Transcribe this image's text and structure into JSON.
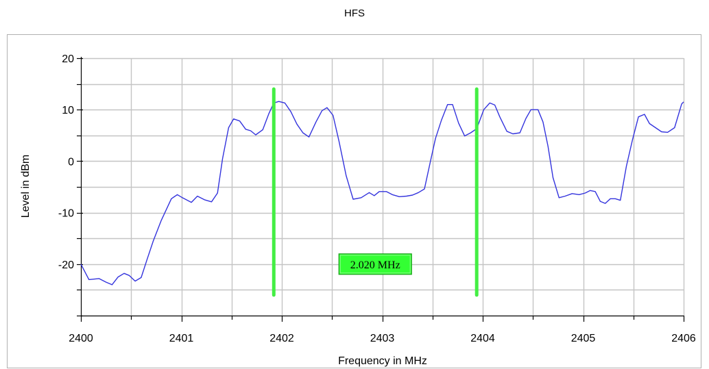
{
  "chart_data": {
    "type": "line",
    "title": "HFS",
    "xlabel": "Frequency in MHz",
    "ylabel": "Level in dBm",
    "xlim": [
      2400,
      2406
    ],
    "ylim": [
      -30,
      20
    ],
    "x_ticks": [
      2400,
      2401,
      2402,
      2403,
      2404,
      2405,
      2406
    ],
    "x_tick_labels": [
      "2400",
      "2401",
      "2402",
      "2403",
      "2404",
      "2405",
      "2406"
    ],
    "y_ticks": [
      -20,
      -10,
      0,
      10,
      20
    ],
    "y_tick_labels": [
      "-20",
      "-10",
      "0",
      "10",
      "20"
    ],
    "grid": true,
    "series_color": "#3333dd",
    "marker_color": "#44ee44",
    "series": [
      {
        "x": [
          2400.0,
          2400.08,
          2400.18,
          2400.25,
          2400.31,
          2400.37,
          2400.43,
          2400.48,
          2400.54,
          2400.6,
          2400.66,
          2400.72,
          2400.8,
          2400.9,
          2400.96,
          2401.01,
          2401.1,
          2401.16,
          2401.23,
          2401.3,
          2401.36,
          2401.41,
          2401.47,
          2401.52,
          2401.58,
          2401.64,
          2401.69,
          2401.74,
          2401.81,
          2401.87,
          2401.92,
          2401.97,
          2402.03,
          2402.09,
          2402.15,
          2402.21,
          2402.27,
          2402.34,
          2402.4,
          2402.45,
          2402.51,
          2402.57,
          2402.64,
          2402.71,
          2402.79,
          2402.87,
          2402.92,
          2402.97,
          2403.04,
          2403.1,
          2403.17,
          2403.24,
          2403.3,
          2403.36,
          2403.42,
          2403.48,
          2403.53,
          2403.59,
          2403.65,
          2403.7,
          2403.76,
          2403.82,
          2403.88,
          2403.94,
          2404.01,
          2404.07,
          2404.12,
          2404.17,
          2404.24,
          2404.3,
          2404.37,
          2404.43,
          2404.48,
          2404.55,
          2404.6,
          2404.65,
          2404.7,
          2404.76,
          2404.82,
          2404.89,
          2404.96,
          2405.02,
          2405.07,
          2405.12,
          2405.17,
          2405.22,
          2405.27,
          2405.32,
          2405.37,
          2405.43,
          2405.49,
          2405.55,
          2405.61,
          2405.66,
          2405.72,
          2405.78,
          2405.84,
          2405.91,
          2405.98,
          2406.0
        ],
        "y": [
          -20,
          -23,
          -22.8,
          -23.5,
          -24,
          -22.5,
          -21.8,
          -22.2,
          -23.3,
          -22.6,
          -19,
          -15.5,
          -11.5,
          -7.3,
          -6.5,
          -7.1,
          -8,
          -6.8,
          -7.5,
          -7.9,
          -6.2,
          0.5,
          6.5,
          8.2,
          7.8,
          6.2,
          5.9,
          5.1,
          6.1,
          9.2,
          11.3,
          11.6,
          11.3,
          9.6,
          7.2,
          5.5,
          4.7,
          7.6,
          9.8,
          10.4,
          8.9,
          3.8,
          -2.8,
          -7.4,
          -7.1,
          -6.1,
          -6.7,
          -5.9,
          -5.9,
          -6.5,
          -6.9,
          -6.8,
          -6.6,
          -6.1,
          -5.4,
          0,
          4.4,
          8,
          11,
          11,
          7.4,
          4.9,
          5.5,
          6.3,
          10,
          11.3,
          10.9,
          8.6,
          5.8,
          5.3,
          5.5,
          8.3,
          10,
          10,
          7.6,
          2.9,
          -3.2,
          -7.1,
          -6.8,
          -6.3,
          -6.5,
          -6.2,
          -5.7,
          -5.9,
          -7.8,
          -8.2,
          -7.3,
          -7.3,
          -7.6,
          -1,
          4.1,
          8.6,
          9.1,
          7.3,
          6.5,
          5.7,
          5.6,
          6.5,
          11.1,
          11.5
        ]
      }
    ],
    "markers": [
      {
        "x": 2401.92,
        "y_top": 14,
        "y_bottom": -26
      },
      {
        "x": 2403.94,
        "y_top": 14,
        "y_bottom": -26
      }
    ],
    "annotations": [
      {
        "text": "2.020 MHz",
        "x": 2402.93,
        "y": -20
      }
    ]
  }
}
